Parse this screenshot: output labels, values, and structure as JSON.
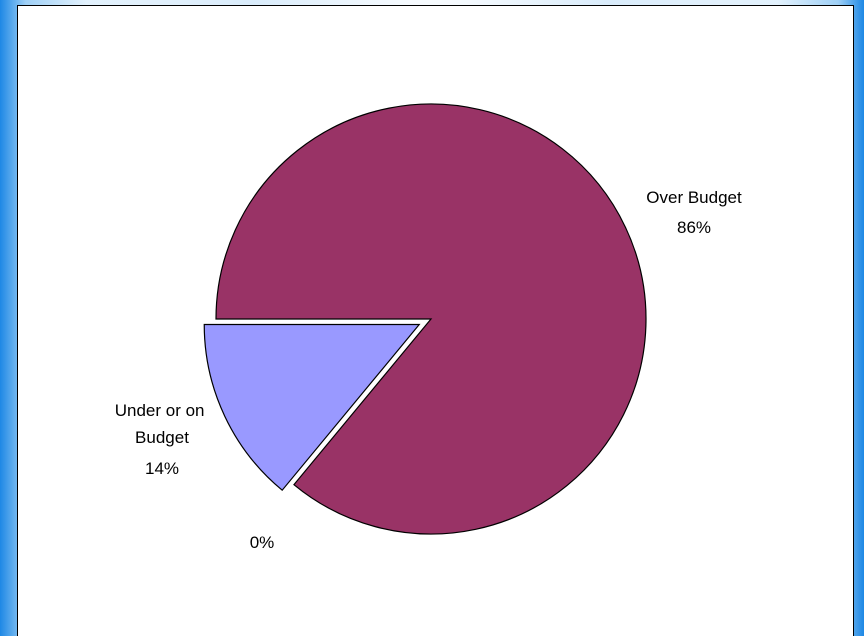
{
  "chart_data": {
    "type": "pie",
    "slices": [
      {
        "name": "Over Budget",
        "value": 86,
        "label_value": "86%",
        "color": "#993366"
      },
      {
        "name": "Under or on Budget",
        "value": 14,
        "label_value": "14%",
        "color": "#9999ff"
      },
      {
        "name": "",
        "value": 0,
        "label_value": "0%",
        "color": "#ffffff"
      }
    ],
    "exploded_slice": "Under or on Budget",
    "legend": "none"
  }
}
